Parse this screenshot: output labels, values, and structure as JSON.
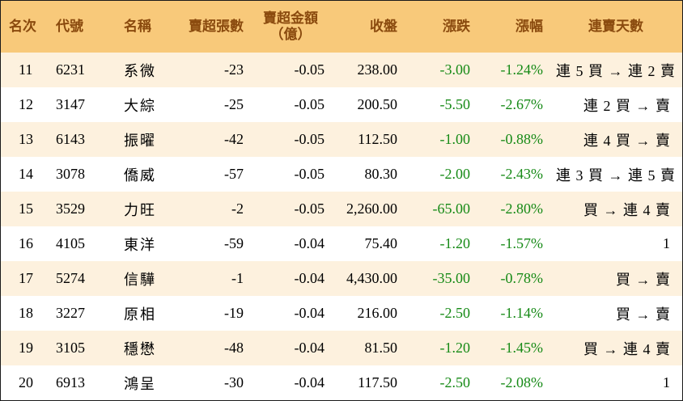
{
  "headers": {
    "rank": "名次",
    "code": "代號",
    "name": "名稱",
    "net_sell_lots": "賣超張數",
    "net_sell_amount": "賣超金額",
    "net_sell_amount_unit": "（億）",
    "close": "收盤",
    "change": "漲跌",
    "change_pct": "漲幅",
    "streak": "連賣天數"
  },
  "colors": {
    "header_bg": "#f8c97a",
    "header_text": "#8a4a0e",
    "stripe_bg": "#fdf1de",
    "negative_change": "#168a16"
  },
  "rows": [
    {
      "rank": "11",
      "code": "6231",
      "name": "系微",
      "lots": "-23",
      "amount": "-0.05",
      "close": "238.00",
      "change": "-3.00",
      "pct": "-1.24%",
      "streak": "連 5 買 → 連 2 賣"
    },
    {
      "rank": "12",
      "code": "3147",
      "name": "大綜",
      "lots": "-25",
      "amount": "-0.05",
      "close": "200.50",
      "change": "-5.50",
      "pct": "-2.67%",
      "streak": "連 2 買 → 賣"
    },
    {
      "rank": "13",
      "code": "6143",
      "name": "振曜",
      "lots": "-42",
      "amount": "-0.05",
      "close": "112.50",
      "change": "-1.00",
      "pct": "-0.88%",
      "streak": "連 4 買 → 賣"
    },
    {
      "rank": "14",
      "code": "3078",
      "name": "僑威",
      "lots": "-57",
      "amount": "-0.05",
      "close": "80.30",
      "change": "-2.00",
      "pct": "-2.43%",
      "streak": "連 3 買 → 連 5 賣"
    },
    {
      "rank": "15",
      "code": "3529",
      "name": "力旺",
      "lots": "-2",
      "amount": "-0.05",
      "close": "2,260.00",
      "change": "-65.00",
      "pct": "-2.80%",
      "streak": "買 → 連 4 賣"
    },
    {
      "rank": "16",
      "code": "4105",
      "name": "東洋",
      "lots": "-59",
      "amount": "-0.04",
      "close": "75.40",
      "change": "-1.20",
      "pct": "-1.57%",
      "streak": "1"
    },
    {
      "rank": "17",
      "code": "5274",
      "name": "信驊",
      "lots": "-1",
      "amount": "-0.04",
      "close": "4,430.00",
      "change": "-35.00",
      "pct": "-0.78%",
      "streak": "買 → 賣"
    },
    {
      "rank": "18",
      "code": "3227",
      "name": "原相",
      "lots": "-19",
      "amount": "-0.04",
      "close": "216.00",
      "change": "-2.50",
      "pct": "-1.14%",
      "streak": "買 → 賣"
    },
    {
      "rank": "19",
      "code": "3105",
      "name": "穩懋",
      "lots": "-48",
      "amount": "-0.04",
      "close": "81.50",
      "change": "-1.20",
      "pct": "-1.45%",
      "streak": "買 → 連 4 賣"
    },
    {
      "rank": "20",
      "code": "6913",
      "name": "鴻呈",
      "lots": "-30",
      "amount": "-0.04",
      "close": "117.50",
      "change": "-2.50",
      "pct": "-2.08%",
      "streak": "1"
    }
  ]
}
